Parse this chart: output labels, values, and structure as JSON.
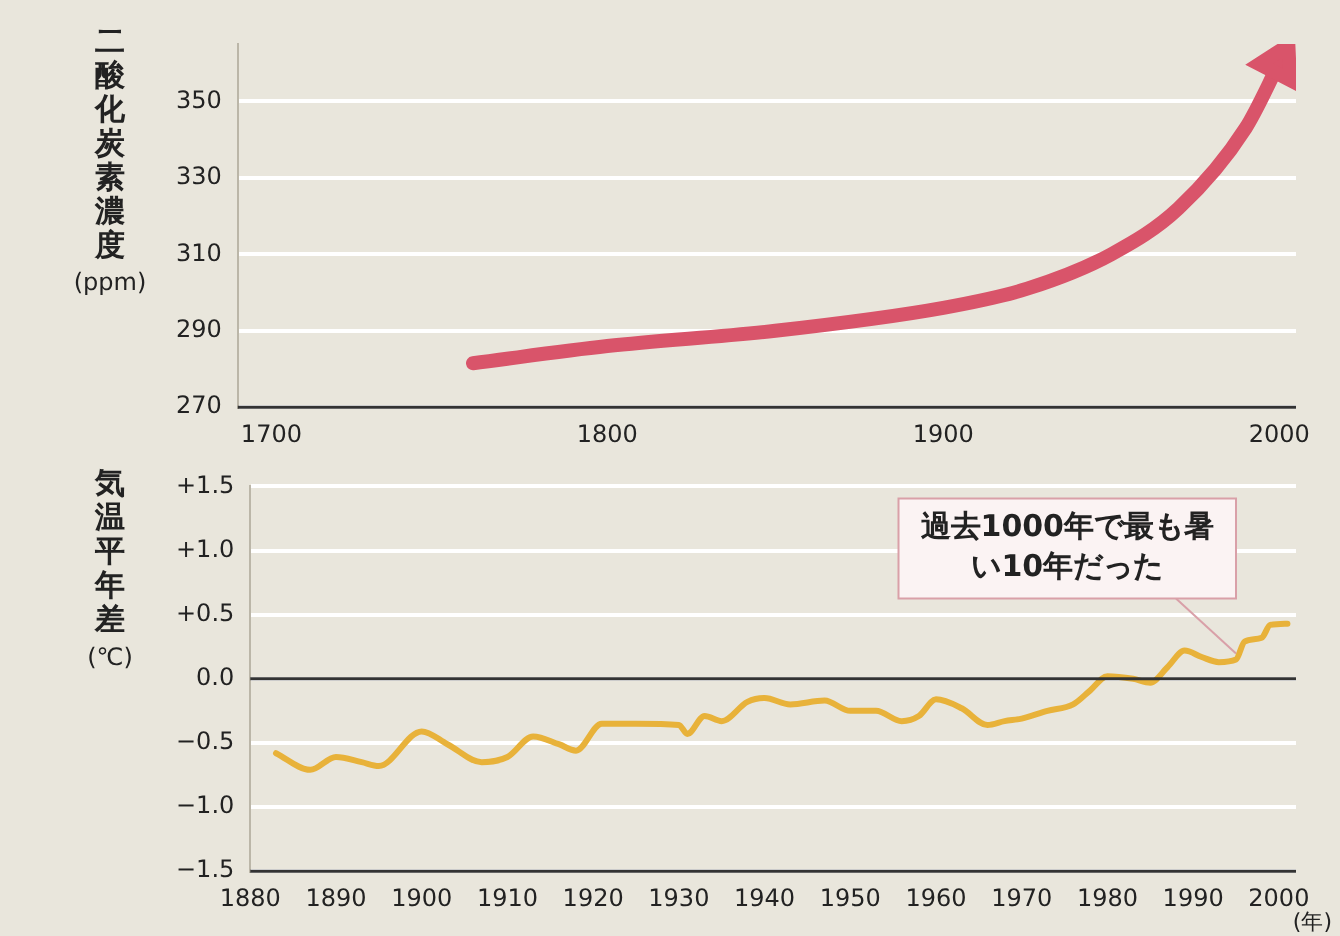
{
  "chart_data": [
    {
      "type": "line",
      "ylabel": "二酸化炭素濃度 (ppm)",
      "x": [
        1760,
        1800,
        1850,
        1900,
        1925,
        1950,
        1970,
        1990,
        2000
      ],
      "series": [
        {
          "color": "#d9546a",
          "values": [
            281.5,
            286,
            290,
            296,
            301,
            310,
            322,
            343,
            360
          ]
        }
      ],
      "xlim": [
        1690,
        2005
      ],
      "xticks": [
        1700,
        1800,
        1900,
        2000
      ],
      "ylim": [
        270,
        365
      ],
      "yticks": [
        270,
        290,
        310,
        330,
        350
      ],
      "grid": "y",
      "marker": "none",
      "line_style": "solid"
    },
    {
      "type": "line",
      "ylabel": "気温平年差 (℃)",
      "xlabel": "(年)",
      "x": [
        1883,
        1887,
        1890,
        1893,
        1895,
        1900,
        1903,
        1907,
        1910,
        1913,
        1916,
        1918,
        1921,
        1925,
        1930,
        1931,
        1933,
        1935,
        1938,
        1940,
        1943,
        1947,
        1950,
        1953,
        1956,
        1958,
        1960,
        1963,
        1966,
        1968,
        1970,
        1973,
        1976,
        1978,
        1980,
        1983,
        1985,
        1987,
        1989,
        1991,
        1993,
        1995,
        1996,
        1998,
        1999,
        2001
      ],
      "series": [
        {
          "color": "#e8b23a",
          "values": [
            -0.58,
            -0.71,
            -0.61,
            -0.65,
            -0.68,
            -0.41,
            -0.51,
            -0.65,
            -0.61,
            -0.45,
            -0.51,
            -0.56,
            -0.35,
            -0.35,
            -0.36,
            -0.43,
            -0.29,
            -0.33,
            -0.18,
            -0.15,
            -0.2,
            -0.17,
            -0.25,
            -0.25,
            -0.33,
            -0.29,
            -0.16,
            -0.23,
            -0.36,
            -0.33,
            -0.31,
            -0.25,
            -0.2,
            -0.09,
            0.02,
            0,
            -0.03,
            0.09,
            0.22,
            0.17,
            0.13,
            0.15,
            0.29,
            0.32,
            0.42,
            0.43
          ]
        }
      ],
      "xlim": [
        1880,
        2002
      ],
      "xticks": [
        1880,
        1890,
        1900,
        1910,
        1920,
        1930,
        1940,
        1950,
        1960,
        1970,
        1980,
        1990,
        2000
      ],
      "ylim": [
        -1.5,
        1.5
      ],
      "yticks": [
        {
          "value": 1.5,
          "label": "+1.5"
        },
        {
          "value": 1,
          "label": "+1.0"
        },
        {
          "value": 0.5,
          "label": "+0.5"
        },
        {
          "value": 0,
          "label": "0.0"
        },
        {
          "value": -0.5,
          "label": "−0.5"
        },
        {
          "value": -1,
          "label": "−1.0"
        },
        {
          "value": -1.5,
          "label": "−1.5"
        }
      ],
      "ref_lines": [
        {
          "axis": "y",
          "value": 0,
          "color": "#333333"
        }
      ],
      "annotations": [
        {
          "text": "過去1000年で最も暑い10年だった",
          "x": 1995,
          "y": 0.15
        }
      ],
      "grid": "y",
      "marker": "none",
      "line_style": "solid"
    }
  ]
}
